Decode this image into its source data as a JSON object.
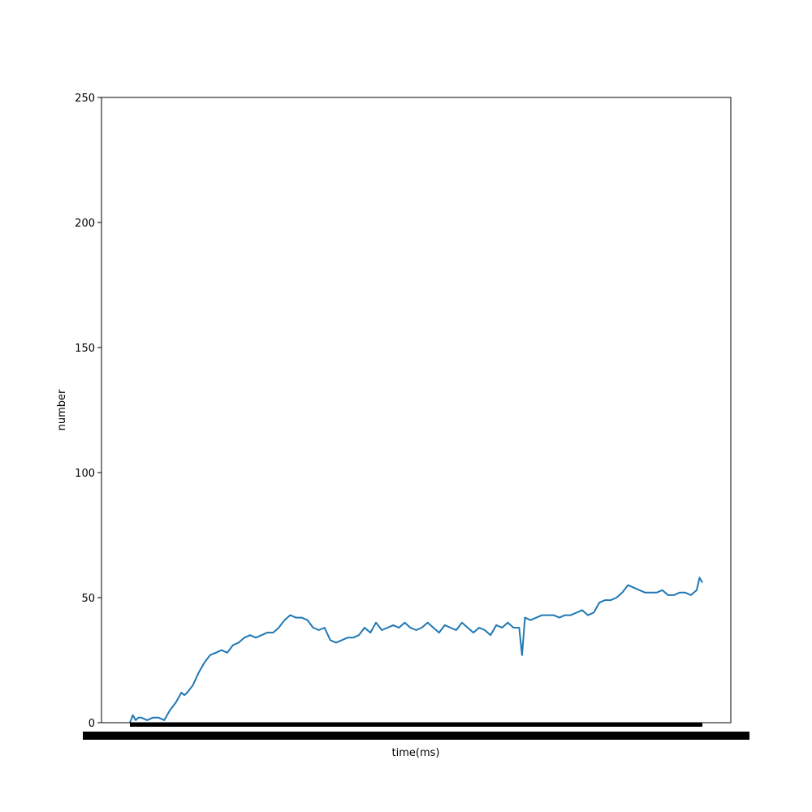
{
  "chart_data": {
    "type": "line",
    "title": "",
    "xlabel": "time(ms)",
    "ylabel": "number",
    "ylim": [
      0,
      250
    ],
    "yticks": [
      0,
      50,
      100,
      150,
      200,
      250
    ],
    "grid": false,
    "x_tick_labels_note": "x tick labels are densely overlapping and unreadable",
    "series": [
      {
        "color": "#1f77b4",
        "x": [
          0,
          0.5,
          1,
          1.5,
          2,
          3,
          4,
          5,
          6,
          6.5,
          7,
          8,
          9,
          9.5,
          10,
          11,
          12,
          13,
          14,
          15,
          16,
          17,
          18,
          19,
          20,
          21,
          22,
          23,
          24,
          25,
          26,
          27,
          28,
          29,
          30,
          31,
          32,
          33,
          34,
          35,
          36,
          37,
          38,
          39,
          40,
          41,
          42,
          43,
          44,
          45,
          46,
          47,
          48,
          48.5,
          49,
          50,
          51,
          52,
          53,
          54,
          55,
          56,
          57,
          58,
          59,
          60,
          61,
          62,
          63,
          64,
          65,
          66,
          67,
          68,
          68.5,
          69,
          70,
          71,
          72,
          73,
          74,
          75,
          76,
          77,
          78,
          79,
          80,
          81,
          82,
          83,
          84,
          85,
          86,
          87,
          88,
          89,
          90,
          91,
          92,
          93,
          94,
          95,
          96,
          97,
          98,
          99,
          99.5,
          100
        ],
        "values": [
          0,
          3,
          1,
          2,
          2,
          1,
          2,
          2,
          1,
          3,
          5,
          8,
          12,
          11,
          12,
          15,
          20,
          24,
          27,
          28,
          29,
          28,
          31,
          32,
          34,
          35,
          34,
          35,
          36,
          36,
          38,
          41,
          43,
          42,
          42,
          41,
          38,
          37,
          38,
          33,
          32,
          33,
          34,
          34,
          35,
          38,
          36,
          40,
          37,
          38,
          39,
          38,
          40,
          39,
          38,
          37,
          38,
          40,
          38,
          36,
          39,
          38,
          37,
          40,
          38,
          36,
          38,
          37,
          35,
          39,
          38,
          40,
          38,
          38,
          27,
          42,
          41,
          42,
          43,
          43,
          43,
          42,
          43,
          43,
          44,
          45,
          43,
          44,
          48,
          49,
          49,
          50,
          52,
          55,
          54,
          53,
          52,
          52,
          52,
          53,
          51,
          51,
          52,
          52,
          51,
          53,
          58,
          56
        ]
      }
    ]
  }
}
